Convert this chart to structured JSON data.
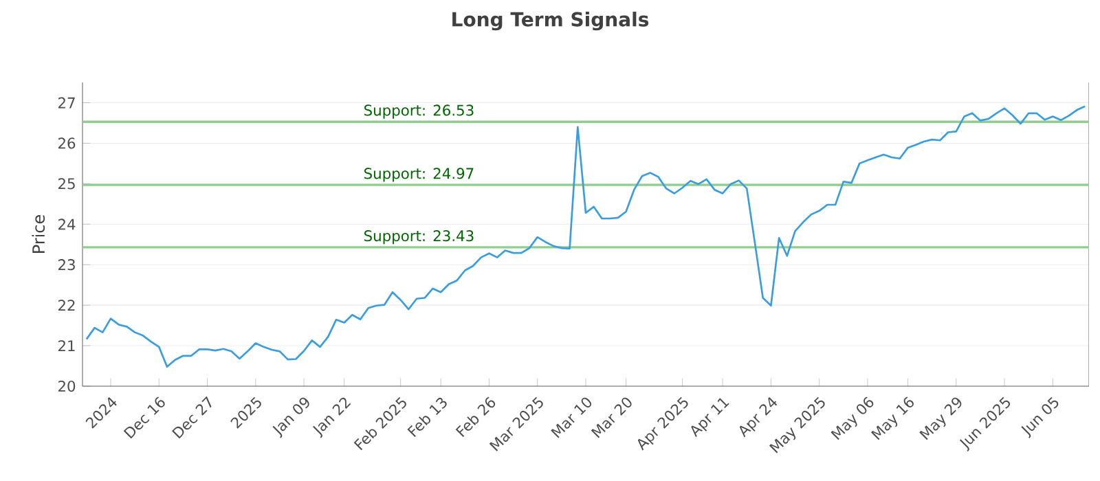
{
  "chart_data": {
    "type": "line",
    "title": "Long Term Signals",
    "ylabel": "Price",
    "categories": [
      null,
      null,
      null,
      "2024",
      null,
      null,
      null,
      null,
      null,
      "Dec 16",
      null,
      null,
      null,
      null,
      null,
      "Dec 27",
      null,
      null,
      null,
      null,
      null,
      "2025",
      null,
      null,
      null,
      null,
      null,
      "Jan 09",
      null,
      null,
      null,
      null,
      "Jan 22",
      null,
      null,
      null,
      null,
      null,
      null,
      "Feb 2025",
      null,
      null,
      null,
      null,
      "Feb 13",
      null,
      null,
      null,
      null,
      null,
      "Feb 26",
      null,
      null,
      null,
      null,
      null,
      "Mar 2025",
      null,
      null,
      null,
      null,
      null,
      "Mar 10",
      null,
      null,
      null,
      null,
      "Mar 20",
      null,
      null,
      null,
      null,
      null,
      null,
      "Apr 2025",
      null,
      null,
      null,
      null,
      "Apr 11",
      null,
      null,
      null,
      null,
      null,
      "Apr 24",
      null,
      null,
      null,
      null,
      null,
      "May 2025",
      null,
      null,
      null,
      null,
      null,
      "May 06",
      null,
      null,
      null,
      null,
      "May 16",
      null,
      null,
      null,
      null,
      null,
      "May 29",
      null,
      null,
      null,
      null,
      null,
      "Jun 2025",
      null,
      null,
      null,
      null,
      null,
      "Jun 05",
      null,
      null,
      null,
      null
    ],
    "series": [
      {
        "color": "#3a9de0",
        "values": [
          21.16,
          21.44,
          21.33,
          21.67,
          21.52,
          21.47,
          21.33,
          21.25,
          21.1,
          20.97,
          20.48,
          20.65,
          20.75,
          20.75,
          20.91,
          20.91,
          20.88,
          20.92,
          20.86,
          20.68,
          20.86,
          21.06,
          20.97,
          20.9,
          20.86,
          20.66,
          20.67,
          20.87,
          21.13,
          20.97,
          21.22,
          21.64,
          21.57,
          21.76,
          21.65,
          21.93,
          21.99,
          22.01,
          22.32,
          22.13,
          21.9,
          22.16,
          22.18,
          22.41,
          22.32,
          22.52,
          22.61,
          22.86,
          22.97,
          23.18,
          23.28,
          23.18,
          23.35,
          23.29,
          23.29,
          23.41,
          23.68,
          23.56,
          23.46,
          23.41,
          23.4,
          26.4,
          24.28,
          24.43,
          24.14,
          24.14,
          24.16,
          24.31,
          24.85,
          25.19,
          25.27,
          25.17,
          24.88,
          24.76,
          24.9,
          25.07,
          24.99,
          25.11,
          24.85,
          24.76,
          24.99,
          25.08,
          24.88,
          23.54,
          22.18,
          21.99,
          23.66,
          23.22,
          23.83,
          24.05,
          24.24,
          24.33,
          24.48,
          24.48,
          25.05,
          25.02,
          25.5,
          25.58,
          25.65,
          25.72,
          25.65,
          25.62,
          25.89,
          25.96,
          26.04,
          26.09,
          26.07,
          26.27,
          26.29,
          26.66,
          26.74,
          26.56,
          26.6,
          26.74,
          26.86,
          26.69,
          26.48,
          26.74,
          26.74,
          26.58,
          26.66,
          26.57,
          26.68,
          26.82,
          26.91
        ]
      }
    ],
    "ylim": [
      20,
      27.5
    ],
    "yticks": [
      20,
      21,
      22,
      23,
      24,
      25,
      26,
      27
    ],
    "grid": "y",
    "ref_lines": [
      {
        "axis": "y",
        "value": 26.53,
        "label": "Support: 26.53",
        "color": "#8fce8f"
      },
      {
        "axis": "y",
        "value": 24.97,
        "label": "Support: 24.97",
        "color": "#8fce8f"
      },
      {
        "axis": "y",
        "value": 23.43,
        "label": "Support: 23.43",
        "color": "#8fce8f"
      }
    ]
  }
}
